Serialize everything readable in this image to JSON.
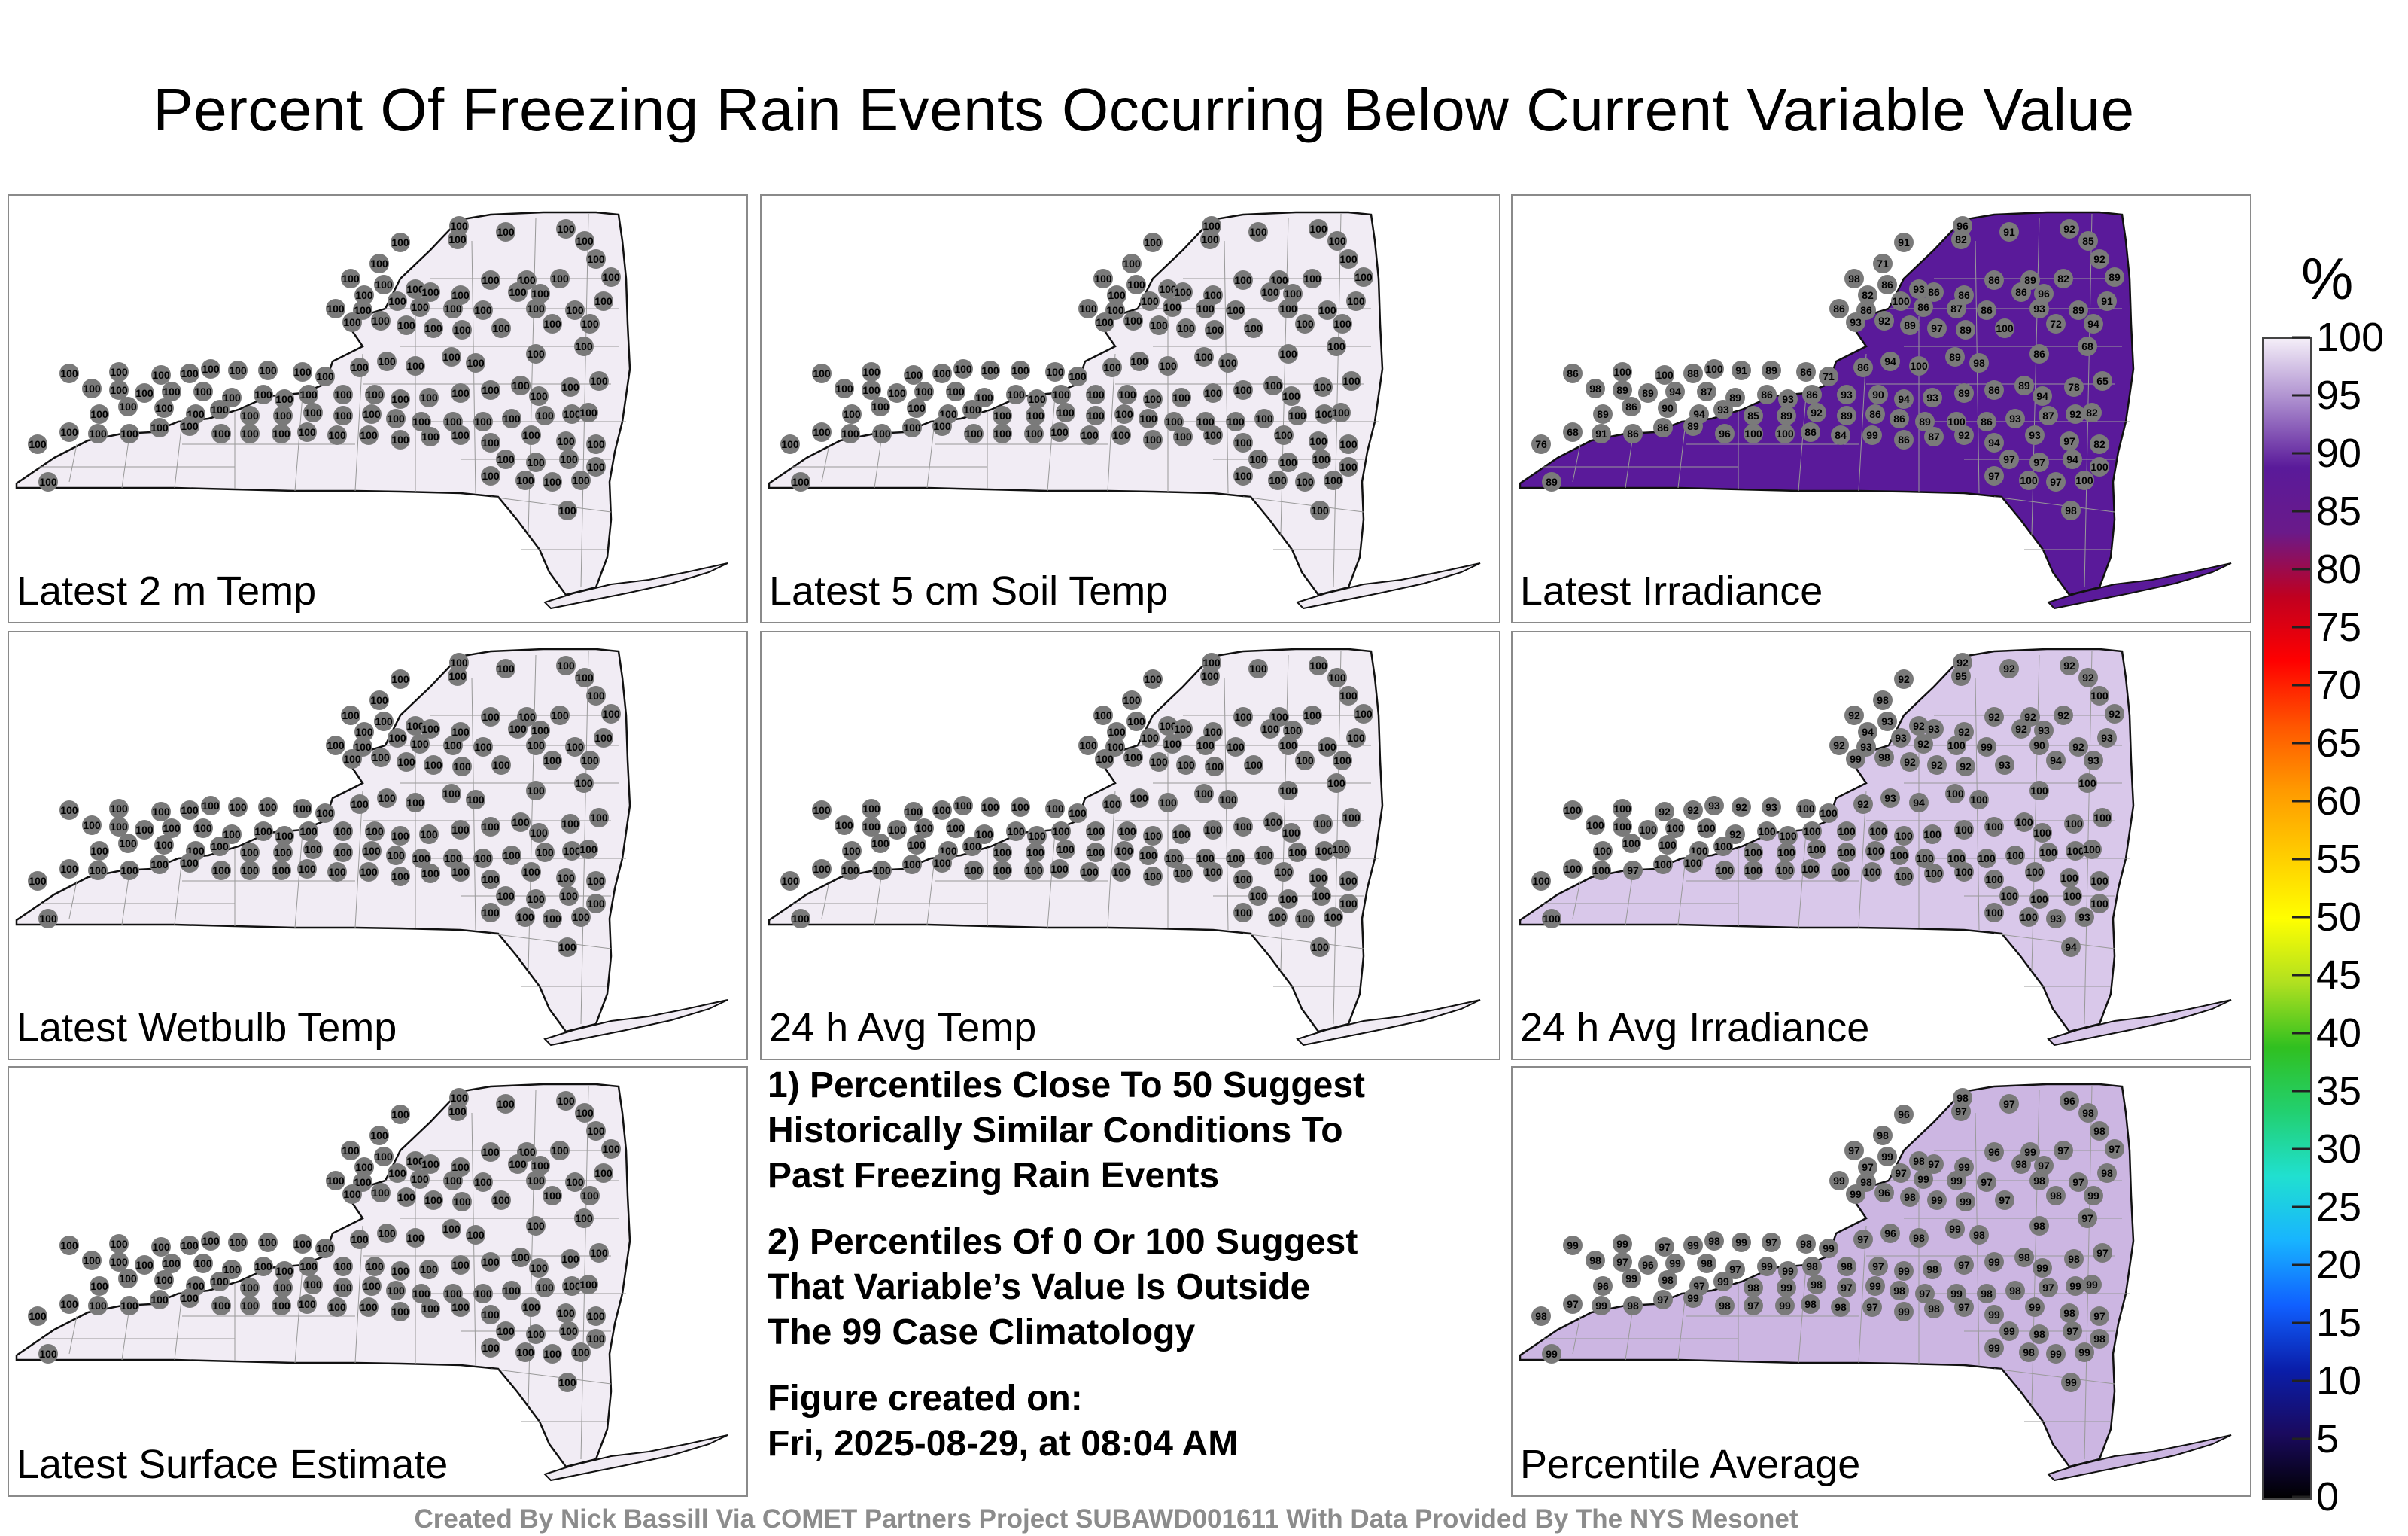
{
  "title": "Percent Of Freezing Rain Events Occurring Below Current Variable Value",
  "panels": [
    {
      "label": "Latest 2 m Temp",
      "fill": "#f1ecf4",
      "station_values": [
        "100",
        "100",
        "100",
        "100",
        "100",
        "100",
        "100",
        "100",
        "100",
        "100",
        "100",
        "100",
        "100",
        "100",
        "100",
        "100",
        "100",
        "100",
        "100",
        "100",
        "100",
        "100",
        "100",
        "100",
        "100",
        "100",
        "100",
        "100",
        "100",
        "100",
        "100",
        "100",
        "100",
        "100",
        "100",
        "100",
        "100",
        "100",
        "100",
        "100",
        "100",
        "100",
        "100",
        "100",
        "100",
        "100",
        "100",
        "100",
        "100",
        "100",
        "100",
        "100",
        "100",
        "100",
        "100",
        "100",
        "100",
        "100",
        "100",
        "100",
        "100",
        "100",
        "100",
        "100",
        "100",
        "100",
        "100",
        "100",
        "100",
        "100",
        "100",
        "100",
        "100",
        "100",
        "100",
        "100",
        "100",
        "100",
        "100",
        "100",
        "100",
        "100",
        "100",
        "100",
        "100",
        "100",
        "100",
        "100",
        "100",
        "100",
        "100",
        "100",
        "100",
        "100",
        "100",
        "100",
        "100",
        "100",
        "100",
        "100",
        "100",
        "100",
        "100",
        "100",
        "100",
        "100",
        "100",
        "100",
        "100",
        "100",
        "100",
        "100",
        "100",
        "100",
        "100",
        "100",
        "100",
        "100",
        "100",
        "100"
      ]
    },
    {
      "label": "Latest 5 cm Soil Temp",
      "fill": "#f1ecf4",
      "station_values": [
        "100",
        "100",
        "100",
        "100",
        "100",
        "100",
        "100",
        "100",
        "100",
        "100",
        "100",
        "100",
        "100",
        "100",
        "100",
        "100",
        "100",
        "100",
        "100",
        "100",
        "100",
        "100",
        "100",
        "100",
        "100",
        "100",
        "100",
        "100",
        "100",
        "100",
        "100",
        "100",
        "100",
        "100",
        "100",
        "100",
        "100",
        "100",
        "100",
        "100",
        "100",
        "100",
        "100",
        "100",
        "100",
        "100",
        "100",
        "100",
        "100",
        "100",
        "100",
        "100",
        "100",
        "100",
        "100",
        "100",
        "100",
        "100",
        "100",
        "100",
        "100",
        "100",
        "100",
        "100",
        "100",
        "100",
        "100",
        "100",
        "100",
        "100",
        "100",
        "100",
        "100",
        "100",
        "100",
        "100",
        "100",
        "100",
        "100",
        "100",
        "100",
        "100",
        "100",
        "100",
        "100",
        "100",
        "100",
        "100",
        "100",
        "100",
        "100",
        "100",
        "100",
        "100",
        "100",
        "100",
        "100",
        "100",
        "100",
        "100",
        "100",
        "100",
        "100",
        "100",
        "100",
        "100",
        "100",
        "100",
        "100",
        "100",
        "100",
        "100",
        "100",
        "100",
        "100",
        "100",
        "100",
        "100",
        "100",
        "100"
      ]
    },
    {
      "label": "Latest Irradiance",
      "fill": "#5a1a9a",
      "station_values": [
        "96",
        "91",
        "92",
        "85",
        "82",
        "91",
        "92",
        "71",
        "82",
        "89",
        "86",
        "89",
        "98",
        "86",
        "93",
        "82",
        "86",
        "86",
        "86",
        "96",
        "86",
        "86",
        "100",
        "86",
        "87",
        "86",
        "93",
        "89",
        "91",
        "93",
        "92",
        "89",
        "97",
        "89",
        "100",
        "72",
        "94",
        "100",
        "100",
        "88",
        "100",
        "91",
        "89",
        "86",
        "71",
        "86",
        "94",
        "100",
        "89",
        "98",
        "86",
        "68",
        "86",
        "98",
        "89",
        "89",
        "94",
        "87",
        "89",
        "86",
        "93",
        "86",
        "93",
        "90",
        "94",
        "93",
        "89",
        "86",
        "89",
        "94",
        "78",
        "65",
        "89",
        "86",
        "90",
        "94",
        "93",
        "85",
        "89",
        "92",
        "89",
        "86",
        "86",
        "89",
        "100",
        "86",
        "93",
        "87",
        "92",
        "82",
        "76",
        "68",
        "91",
        "86",
        "86",
        "89",
        "96",
        "100",
        "100",
        "86",
        "84",
        "99",
        "86",
        "87",
        "92",
        "94",
        "93",
        "97",
        "82",
        "97",
        "97",
        "94",
        "97",
        "100",
        "97",
        "100",
        "100",
        "98",
        "89",
        "98"
      ]
    },
    {
      "label": "Latest Wetbulb Temp",
      "fill": "#f1ecf4",
      "station_values": [
        "100",
        "100",
        "100",
        "100",
        "100",
        "100",
        "100",
        "100",
        "100",
        "100",
        "100",
        "100",
        "100",
        "100",
        "100",
        "100",
        "100",
        "100",
        "100",
        "100",
        "100",
        "100",
        "100",
        "100",
        "100",
        "100",
        "100",
        "100",
        "100",
        "100",
        "100",
        "100",
        "100",
        "100",
        "100",
        "100",
        "100",
        "100",
        "100",
        "100",
        "100",
        "100",
        "100",
        "100",
        "100",
        "100",
        "100",
        "100",
        "100",
        "100",
        "100",
        "100",
        "100",
        "100",
        "100",
        "100",
        "100",
        "100",
        "100",
        "100",
        "100",
        "100",
        "100",
        "100",
        "100",
        "100",
        "100",
        "100",
        "100",
        "100",
        "100",
        "100",
        "100",
        "100",
        "100",
        "100",
        "100",
        "100",
        "100",
        "100",
        "100",
        "100",
        "100",
        "100",
        "100",
        "100",
        "100",
        "100",
        "100",
        "100",
        "100",
        "100",
        "100",
        "100",
        "100",
        "100",
        "100",
        "100",
        "100",
        "100",
        "100",
        "100",
        "100",
        "100",
        "100",
        "100",
        "100",
        "100",
        "100",
        "100",
        "100",
        "100",
        "100",
        "100",
        "100",
        "100",
        "100",
        "100",
        "100",
        "100"
      ]
    },
    {
      "label": "24 h Avg Temp",
      "fill": "#f1ecf4",
      "station_values": [
        "100",
        "100",
        "100",
        "100",
        "100",
        "100",
        "100",
        "100",
        "100",
        "100",
        "100",
        "100",
        "100",
        "100",
        "100",
        "100",
        "100",
        "100",
        "100",
        "100",
        "100",
        "100",
        "100",
        "100",
        "100",
        "100",
        "100",
        "100",
        "100",
        "100",
        "100",
        "100",
        "100",
        "100",
        "100",
        "100",
        "100",
        "100",
        "100",
        "100",
        "100",
        "100",
        "100",
        "100",
        "100",
        "100",
        "100",
        "100",
        "100",
        "100",
        "100",
        "100",
        "100",
        "100",
        "100",
        "100",
        "100",
        "100",
        "100",
        "100",
        "100",
        "100",
        "100",
        "100",
        "100",
        "100",
        "100",
        "100",
        "100",
        "100",
        "100",
        "100",
        "100",
        "100",
        "100",
        "100",
        "100",
        "100",
        "100",
        "100",
        "100",
        "100",
        "100",
        "100",
        "100",
        "100",
        "100",
        "100",
        "100",
        "100",
        "100",
        "100",
        "100",
        "100",
        "100",
        "100",
        "100",
        "100",
        "100",
        "100",
        "100",
        "100",
        "100",
        "100",
        "100",
        "100",
        "100",
        "100",
        "100",
        "100",
        "100",
        "100",
        "100",
        "100",
        "100",
        "100",
        "100",
        "100",
        "100",
        "100"
      ]
    },
    {
      "label": "24 h Avg Irradiance",
      "fill": "#d9c8ea",
      "station_values": [
        "92",
        "92",
        "92",
        "92",
        "95",
        "92",
        "100",
        "98",
        "92",
        "92",
        "92",
        "92",
        "92",
        "93",
        "92",
        "94",
        "93",
        "92",
        "92",
        "93",
        "92",
        "93",
        "93",
        "92",
        "100",
        "99",
        "90",
        "92",
        "93",
        "99",
        "98",
        "92",
        "92",
        "92",
        "93",
        "94",
        "93",
        "100",
        "92",
        "92",
        "93",
        "92",
        "93",
        "100",
        "100",
        "92",
        "93",
        "94",
        "100",
        "100",
        "100",
        "100",
        "100",
        "100",
        "100",
        "100",
        "100",
        "100",
        "92",
        "100",
        "100",
        "100",
        "100",
        "100",
        "100",
        "100",
        "100",
        "100",
        "100",
        "100",
        "100",
        "100",
        "100",
        "100",
        "100",
        "100",
        "100",
        "100",
        "100",
        "100",
        "100",
        "100",
        "100",
        "100",
        "100",
        "100",
        "100",
        "100",
        "100",
        "100",
        "100",
        "100",
        "100",
        "97",
        "100",
        "100",
        "100",
        "100",
        "100",
        "100",
        "100",
        "100",
        "100",
        "100",
        "100",
        "100",
        "100",
        "100",
        "100",
        "100",
        "100",
        "100",
        "100",
        "100",
        "93",
        "93",
        "100",
        "94",
        "100",
        "100"
      ]
    },
    {
      "label": "Latest Surface Estimate",
      "fill": "#f1ecf4",
      "station_values": [
        "100",
        "100",
        "100",
        "100",
        "100",
        "100",
        "100",
        "100",
        "100",
        "100",
        "100",
        "100",
        "100",
        "100",
        "100",
        "100",
        "100",
        "100",
        "100",
        "100",
        "100",
        "100",
        "100",
        "100",
        "100",
        "100",
        "100",
        "100",
        "100",
        "100",
        "100",
        "100",
        "100",
        "100",
        "100",
        "100",
        "100",
        "100",
        "100",
        "100",
        "100",
        "100",
        "100",
        "100",
        "100",
        "100",
        "100",
        "100",
        "100",
        "100",
        "100",
        "100",
        "100",
        "100",
        "100",
        "100",
        "100",
        "100",
        "100",
        "100",
        "100",
        "100",
        "100",
        "100",
        "100",
        "100",
        "100",
        "100",
        "100",
        "100",
        "100",
        "100",
        "100",
        "100",
        "100",
        "100",
        "100",
        "100",
        "100",
        "100",
        "100",
        "100",
        "100",
        "100",
        "100",
        "100",
        "100",
        "100",
        "100",
        "100",
        "100",
        "100",
        "100",
        "100",
        "100",
        "100",
        "100",
        "100",
        "100",
        "100",
        "100",
        "100",
        "100",
        "100",
        "100",
        "100",
        "100",
        "100",
        "100",
        "100",
        "100",
        "100",
        "100",
        "100",
        "100",
        "100",
        "100",
        "100",
        "100",
        "100"
      ]
    },
    {
      "label": "Percentile Average",
      "fill": "#ccb6e2",
      "station_values": [
        "98",
        "97",
        "96",
        "98",
        "97",
        "96",
        "98",
        "98",
        "97",
        "99",
        "96",
        "97",
        "97",
        "99",
        "98",
        "97",
        "97",
        "99",
        "98",
        "97",
        "99",
        "98",
        "97",
        "99",
        "99",
        "97",
        "98",
        "97",
        "98",
        "99",
        "96",
        "98",
        "99",
        "99",
        "97",
        "98",
        "99",
        "99",
        "97",
        "99",
        "98",
        "99",
        "97",
        "98",
        "99",
        "97",
        "96",
        "98",
        "99",
        "98",
        "98",
        "97",
        "99",
        "98",
        "97",
        "96",
        "99",
        "98",
        "97",
        "99",
        "99",
        "98",
        "98",
        "97",
        "99",
        "98",
        "97",
        "99",
        "98",
        "99",
        "98",
        "97",
        "96",
        "99",
        "98",
        "97",
        "99",
        "98",
        "99",
        "98",
        "97",
        "99",
        "98",
        "97",
        "99",
        "98",
        "98",
        "97",
        "99",
        "99",
        "98",
        "97",
        "99",
        "98",
        "97",
        "99",
        "98",
        "97",
        "99",
        "98",
        "98",
        "97",
        "99",
        "98",
        "97",
        "99",
        "99",
        "98",
        "97",
        "99",
        "98",
        "97",
        "99",
        "98",
        "99",
        "99",
        "98",
        "99",
        "99",
        "98"
      ]
    }
  ],
  "notes": [
    "1) Percentiles Close To 50 Suggest\nHistorically Similar Conditions To\nPast Freezing Rain Events",
    "2) Percentiles Of 0 Or 100 Suggest\nThat Variable’s Value Is Outside\nThe 99 Case Climatology",
    "Figure created on:\nFri, 2025-08-29, at 08:04 AM"
  ],
  "colorbar": {
    "unit": "%",
    "ticks": [
      "0",
      "5",
      "10",
      "15",
      "20",
      "25",
      "30",
      "35",
      "40",
      "45",
      "50",
      "55",
      "60",
      "65",
      "70",
      "75",
      "80",
      "85",
      "90",
      "95",
      "100"
    ],
    "colors": [
      "#000000",
      "#1a0a5e",
      "#0a1eaa",
      "#1060ff",
      "#18b4ff",
      "#20e0d0",
      "#22d070",
      "#30c020",
      "#b0e020",
      "#ffff00",
      "#ffcc00",
      "#ff9900",
      "#ff5500",
      "#ff0000",
      "#c00020",
      "#6a1a8a",
      "#5a1a9a",
      "#a888cc",
      "#f4eef8"
    ]
  },
  "credit": "Created By Nick Bassill Via COMET Partners Project SUBAWD001611 With Data Provided By The NYS Mesonet",
  "styles": {
    "border": "#8a8a8a",
    "station_dot": "#7a7a7a",
    "state_outline": "#111111"
  }
}
